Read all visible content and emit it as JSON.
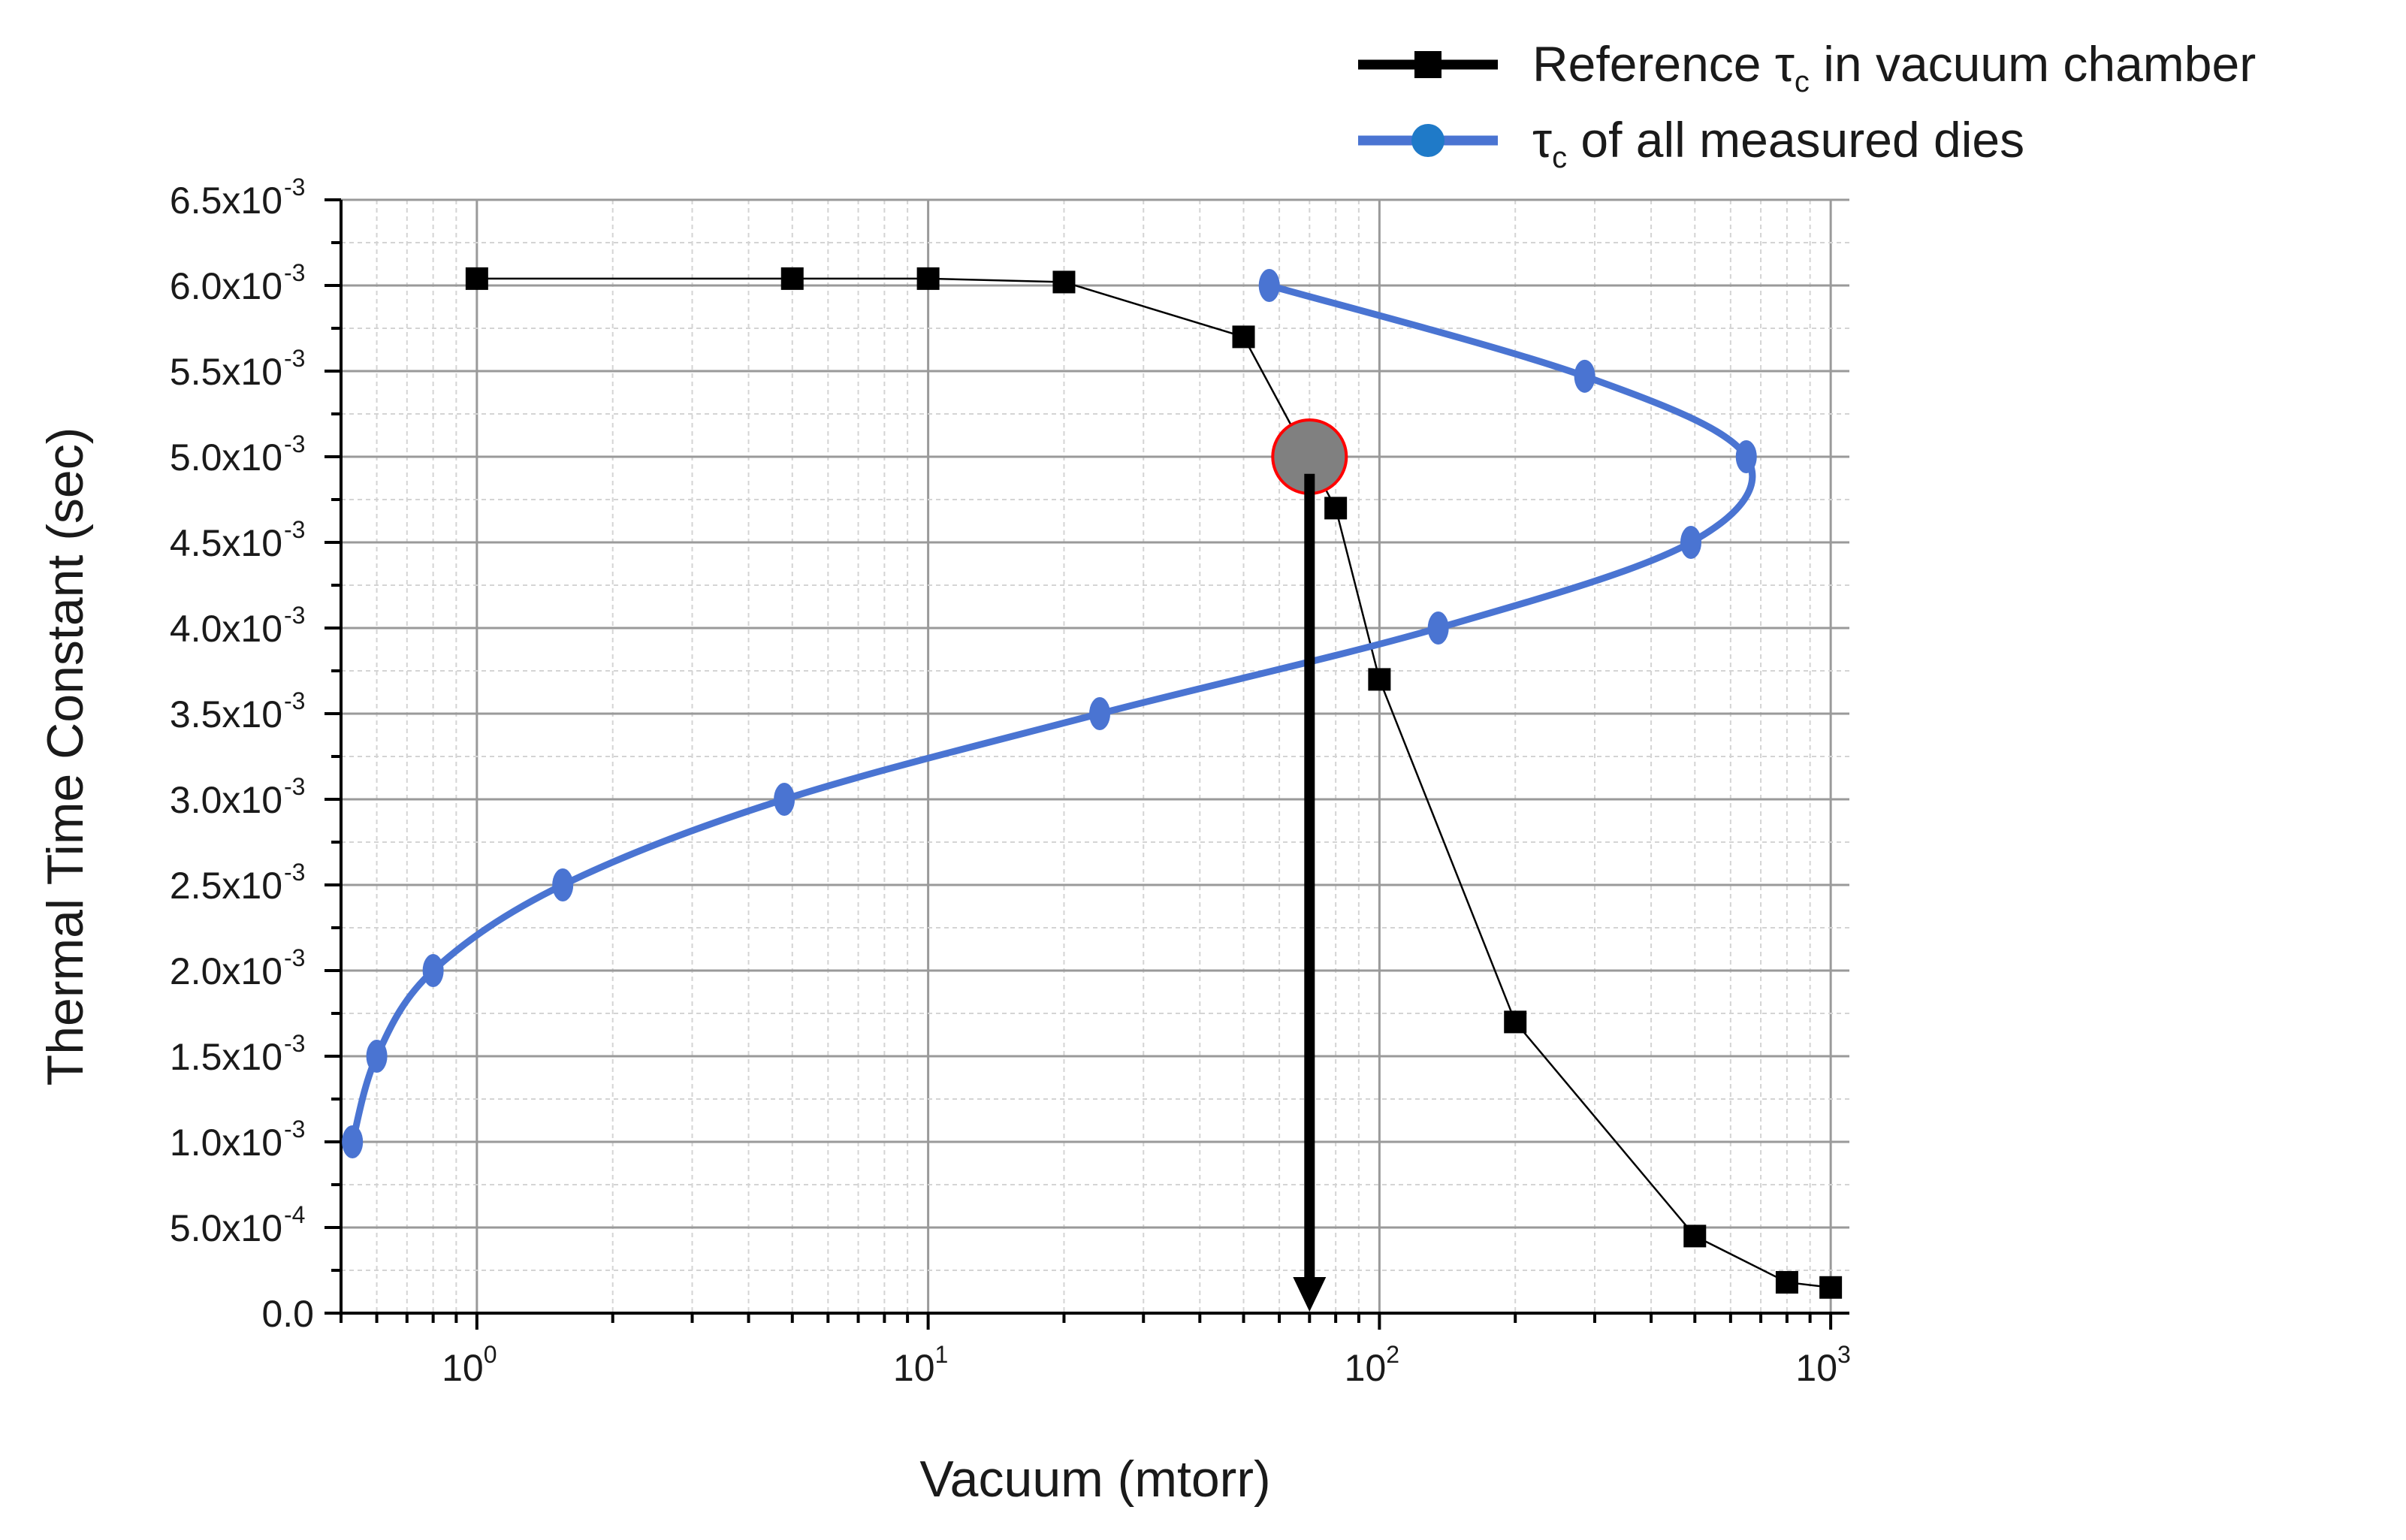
{
  "chart_data": {
    "type": "line",
    "xlabel": "Vacuum (mtorr)",
    "ylabel": "Thermal Time Constant (sec)",
    "xscale": "log",
    "xlim": [
      0.5,
      1100
    ],
    "ylim": [
      0,
      0.0065
    ],
    "x_tick_labels": [
      {
        "value": 1,
        "base": "10",
        "exp": "0"
      },
      {
        "value": 10,
        "base": "10",
        "exp": "1"
      },
      {
        "value": 100,
        "base": "10",
        "exp": "2"
      },
      {
        "value": 1000,
        "base": "10",
        "exp": "3"
      }
    ],
    "y_tick_labels": [
      {
        "value": 0.0065,
        "mant": "6.5x10",
        "exp": "-3"
      },
      {
        "value": 0.006,
        "mant": "6.0x10",
        "exp": "-3"
      },
      {
        "value": 0.0055,
        "mant": "5.5x10",
        "exp": "-3"
      },
      {
        "value": 0.005,
        "mant": "5.0x10",
        "exp": "-3"
      },
      {
        "value": 0.0045,
        "mant": "4.5x10",
        "exp": "-3"
      },
      {
        "value": 0.004,
        "mant": "4.0x10",
        "exp": "-3"
      },
      {
        "value": 0.0035,
        "mant": "3.5x10",
        "exp": "-3"
      },
      {
        "value": 0.003,
        "mant": "3.0x10",
        "exp": "-3"
      },
      {
        "value": 0.0025,
        "mant": "2.5x10",
        "exp": "-3"
      },
      {
        "value": 0.002,
        "mant": "2.0x10",
        "exp": "-3"
      },
      {
        "value": 0.0015,
        "mant": "1.5x10",
        "exp": "-3"
      },
      {
        "value": 0.001,
        "mant": "1.0x10",
        "exp": "-3"
      },
      {
        "value": 0.0005,
        "mant": "5.0x10",
        "exp": "-4"
      },
      {
        "value": 0,
        "mant": "0.0",
        "exp": ""
      }
    ],
    "grid": true,
    "legend_position": "top-right",
    "series": [
      {
        "legend_main": "Reference τ",
        "legend_sub": "c",
        "legend_rest": " in vacuum chamber",
        "color": "#000000",
        "marker": "square",
        "x": [
          1,
          5,
          10,
          20,
          50,
          80,
          100,
          200,
          500,
          800,
          1000
        ],
        "y": [
          0.00604,
          0.00604,
          0.00604,
          0.00602,
          0.0057,
          0.0047,
          0.0037,
          0.0017,
          0.00045,
          0.00018,
          0.00015
        ]
      },
      {
        "legend_main": "τ",
        "legend_sub": "c",
        "legend_rest": " of all measured dies",
        "color": "#4a74d2",
        "marker": "circle",
        "x": [
          0.53,
          0.6,
          0.8,
          1.55,
          4.8,
          24,
          135,
          490,
          650,
          285,
          57
        ],
        "y": [
          0.001,
          0.0015,
          0.002,
          0.0025,
          0.003,
          0.0035,
          0.004,
          0.0045,
          0.005,
          0.00547,
          0.006
        ]
      }
    ],
    "annotations": [
      {
        "kind": "highlight-point",
        "x": 70,
        "y": 0.005,
        "fill": "#808080",
        "stroke": "#ff0000"
      },
      {
        "kind": "arrow-down",
        "x": 70,
        "y_from": 0.0049,
        "y_to": 0
      }
    ]
  }
}
